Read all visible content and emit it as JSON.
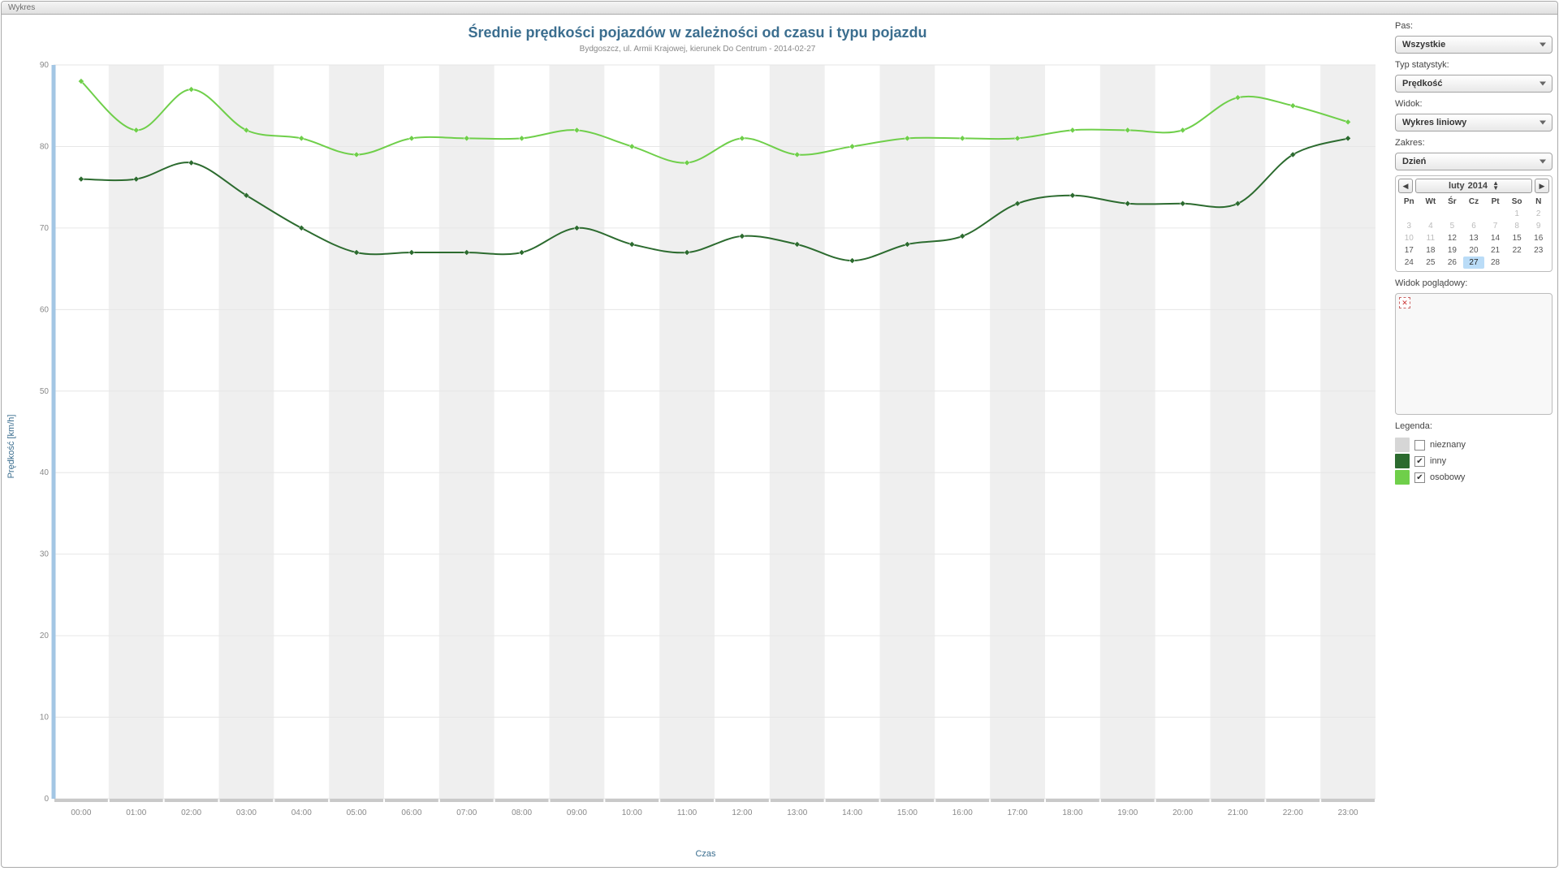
{
  "window": {
    "tab_label": "Wykres"
  },
  "chart": {
    "type": "line",
    "title": "Średnie prędkości pojazdów w zależności od czasu i typu pojazdu",
    "subtitle": "Bydgoszcz, ul. Armii Krajowej, kierunek Do Centrum - 2014-02-27",
    "y_axis_title": "Prędkość [km/h]",
    "x_axis_title": "Czas",
    "x_categories": [
      "00:00",
      "01:00",
      "02:00",
      "03:00",
      "04:00",
      "05:00",
      "06:00",
      "07:00",
      "08:00",
      "09:00",
      "10:00",
      "11:00",
      "12:00",
      "13:00",
      "14:00",
      "15:00",
      "16:00",
      "17:00",
      "18:00",
      "19:00",
      "20:00",
      "21:00",
      "22:00",
      "23:00"
    ],
    "y_ticks": [
      0,
      10,
      20,
      30,
      40,
      50,
      60,
      70,
      80,
      90
    ],
    "ylim": [
      0,
      90
    ],
    "series": [
      {
        "key": "osobowy",
        "color": "#6fcf4a",
        "stroke_width": 2,
        "marker": "diamond",
        "values": [
          88,
          82,
          87,
          82,
          81,
          79,
          81,
          81,
          81,
          82,
          80,
          78,
          81,
          79,
          80,
          81,
          81,
          81,
          82,
          82,
          82,
          86,
          85,
          83
        ]
      },
      {
        "key": "inny",
        "color": "#2c6b2f",
        "stroke_width": 2,
        "marker": "diamond",
        "values": [
          76,
          76,
          78,
          74,
          70,
          67,
          67,
          67,
          67,
          70,
          68,
          67,
          69,
          68,
          66,
          68,
          69,
          73,
          74,
          73,
          73,
          73,
          79,
          81
        ]
      }
    ],
    "title_color": "#3b6e8f",
    "subtitle_color": "#888888",
    "axis_label_color": "#888888",
    "plot_band_color": "#efefef",
    "plot_background": "#ffffff",
    "y_axis_line_color": "#a3c6e4",
    "y_axis_line_width": 5,
    "x_axis_line_color": "#b9b9b9",
    "gridline_color": "#e6e6e6",
    "label_fontsize": 10
  },
  "sidebar": {
    "labels": {
      "pas": "Pas:",
      "typ": "Typ statystyk:",
      "widok": "Widok:",
      "zakres": "Zakres:",
      "overview": "Widok poglądowy:",
      "legend": "Legenda:"
    },
    "selects": {
      "pas": "Wszystkie",
      "typ": "Prędkość",
      "widok": "Wykres liniowy",
      "zakres": "Dzień"
    },
    "calendar": {
      "month": "luty",
      "year": "2014",
      "dow": [
        "Pn",
        "Wt",
        "Śr",
        "Cz",
        "Pt",
        "So",
        "N"
      ],
      "leading_blank": 5,
      "days": 28,
      "dim_through": 11,
      "selected": 27
    },
    "legend_items": [
      {
        "label": "nieznany",
        "color": "#d6d6d6",
        "checked": false
      },
      {
        "label": "inny",
        "color": "#2c6b2f",
        "checked": true
      },
      {
        "label": "osobowy",
        "color": "#6fcf4a",
        "checked": true
      }
    ]
  }
}
